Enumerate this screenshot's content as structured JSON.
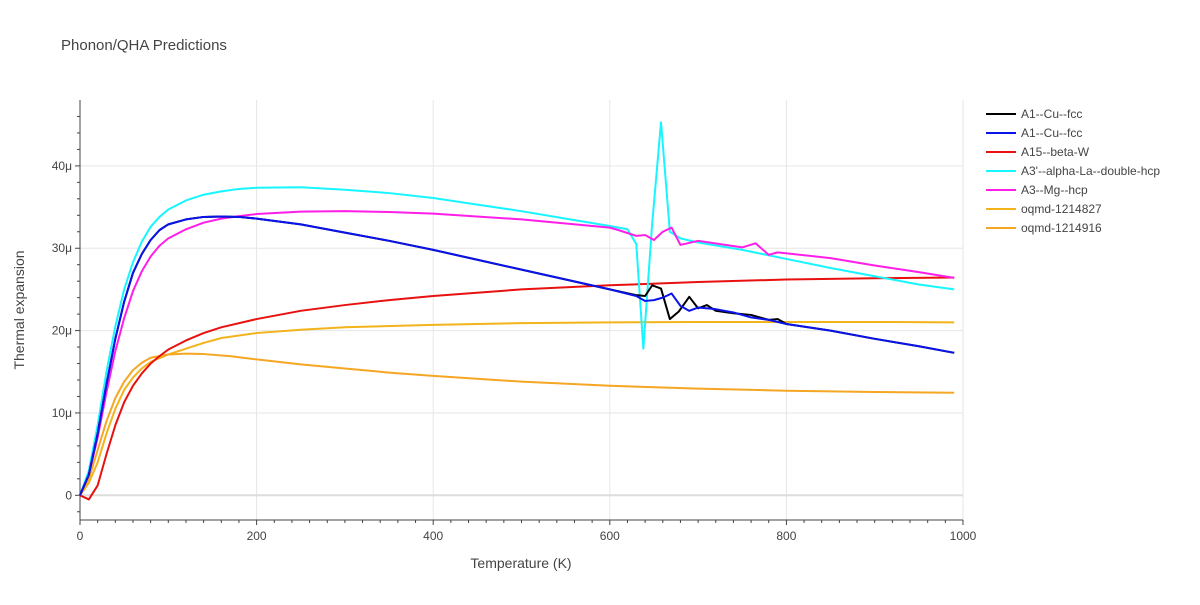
{
  "chart_data": {
    "type": "line",
    "title": "Phonon/QHA Predictions",
    "xlabel": "Temperature (K)",
    "ylabel": "Thermal expansion",
    "xlim": [
      0,
      1000
    ],
    "ylim": [
      -3e-06,
      4.8e-05
    ],
    "x_ticks": [
      {
        "value": 0,
        "label": "0"
      },
      {
        "value": 200,
        "label": "200"
      },
      {
        "value": 400,
        "label": "400"
      },
      {
        "value": 600,
        "label": "600"
      },
      {
        "value": 800,
        "label": "800"
      },
      {
        "value": 1000,
        "label": "1000"
      }
    ],
    "y_ticks": [
      {
        "value": 0,
        "label": "0"
      },
      {
        "value": 1e-05,
        "label": "10μ"
      },
      {
        "value": 2e-05,
        "label": "20μ"
      },
      {
        "value": 3e-05,
        "label": "30μ"
      },
      {
        "value": 4e-05,
        "label": "40μ"
      }
    ],
    "grid": true,
    "legend_position": "top-right",
    "series": [
      {
        "name": "oqmd-1214827",
        "color": "#f2b31b",
        "points": [
          [
            0,
            0
          ],
          [
            10,
            1.5e-06
          ],
          [
            20,
            4e-06
          ],
          [
            30,
            7.5e-06
          ],
          [
            40,
            1.05e-05
          ],
          [
            50,
            1.28e-05
          ],
          [
            60,
            1.43e-05
          ],
          [
            70,
            1.54e-05
          ],
          [
            80,
            1.62e-05
          ],
          [
            100,
            1.71e-05
          ],
          [
            120,
            1.78e-05
          ],
          [
            140,
            1.85e-05
          ],
          [
            160,
            1.91e-05
          ],
          [
            200,
            1.97e-05
          ],
          [
            250,
            2.01e-05
          ],
          [
            300,
            2.04e-05
          ],
          [
            400,
            2.07e-05
          ],
          [
            500,
            2.09e-05
          ],
          [
            600,
            2.1e-05
          ],
          [
            700,
            2.105e-05
          ],
          [
            800,
            2.105e-05
          ],
          [
            900,
            2.105e-05
          ],
          [
            990,
            2.1e-05
          ]
        ]
      },
      {
        "name": "oqmd-1214916",
        "color": "#f5a623",
        "points": [
          [
            0,
            0
          ],
          [
            10,
            2e-06
          ],
          [
            20,
            5.5e-06
          ],
          [
            30,
            9e-06
          ],
          [
            40,
            1.18e-05
          ],
          [
            50,
            1.38e-05
          ],
          [
            60,
            1.52e-05
          ],
          [
            70,
            1.61e-05
          ],
          [
            80,
            1.67e-05
          ],
          [
            100,
            1.71e-05
          ],
          [
            120,
            1.72e-05
          ],
          [
            140,
            1.715e-05
          ],
          [
            170,
            1.69e-05
          ],
          [
            200,
            1.65e-05
          ],
          [
            250,
            1.59e-05
          ],
          [
            300,
            1.54e-05
          ],
          [
            350,
            1.49e-05
          ],
          [
            400,
            1.45e-05
          ],
          [
            500,
            1.38e-05
          ],
          [
            600,
            1.33e-05
          ],
          [
            700,
            1.295e-05
          ],
          [
            800,
            1.27e-05
          ],
          [
            900,
            1.255e-05
          ],
          [
            990,
            1.245e-05
          ]
        ]
      },
      {
        "name": "A15--beta-W",
        "color": "#e8110f",
        "points": [
          [
            0,
            0
          ],
          [
            10,
            -5e-07
          ],
          [
            20,
            1.2e-06
          ],
          [
            30,
            5e-06
          ],
          [
            40,
            8.5e-06
          ],
          [
            50,
            1.13e-05
          ],
          [
            60,
            1.33e-05
          ],
          [
            70,
            1.48e-05
          ],
          [
            80,
            1.6e-05
          ],
          [
            90,
            1.69e-05
          ],
          [
            100,
            1.77e-05
          ],
          [
            120,
            1.88e-05
          ],
          [
            140,
            1.97e-05
          ],
          [
            160,
            2.04e-05
          ],
          [
            200,
            2.14e-05
          ],
          [
            250,
            2.24e-05
          ],
          [
            300,
            2.31e-05
          ],
          [
            350,
            2.37e-05
          ],
          [
            400,
            2.42e-05
          ],
          [
            500,
            2.5e-05
          ],
          [
            600,
            2.55e-05
          ],
          [
            700,
            2.59e-05
          ],
          [
            800,
            2.62e-05
          ],
          [
            900,
            2.635e-05
          ],
          [
            990,
            2.645e-05
          ]
        ]
      },
      {
        "name": "A3'--alpha-La--double-hcp",
        "color": "#17f5ff",
        "points": [
          [
            0,
            0
          ],
          [
            10,
            3e-06
          ],
          [
            20,
            8.5e-06
          ],
          [
            30,
            1.5e-05
          ],
          [
            40,
            2.05e-05
          ],
          [
            50,
            2.5e-05
          ],
          [
            60,
            2.83e-05
          ],
          [
            70,
            3.08e-05
          ],
          [
            80,
            3.26e-05
          ],
          [
            90,
            3.38e-05
          ],
          [
            100,
            3.47e-05
          ],
          [
            120,
            3.58e-05
          ],
          [
            140,
            3.65e-05
          ],
          [
            160,
            3.69e-05
          ],
          [
            180,
            3.72e-05
          ],
          [
            200,
            3.735e-05
          ],
          [
            250,
            3.74e-05
          ],
          [
            300,
            3.71e-05
          ],
          [
            350,
            3.67e-05
          ],
          [
            400,
            3.61e-05
          ],
          [
            450,
            3.53e-05
          ],
          [
            500,
            3.45e-05
          ],
          [
            550,
            3.36e-05
          ],
          [
            600,
            3.27e-05
          ],
          [
            620,
            3.23e-05
          ],
          [
            630,
            3.05e-05
          ],
          [
            638,
            1.78e-05
          ],
          [
            648,
            3.3e-05
          ],
          [
            658,
            4.53e-05
          ],
          [
            668,
            3.2e-05
          ],
          [
            680,
            3.12e-05
          ],
          [
            700,
            3.07e-05
          ],
          [
            750,
            2.98e-05
          ],
          [
            800,
            2.87e-05
          ],
          [
            850,
            2.76e-05
          ],
          [
            900,
            2.66e-05
          ],
          [
            950,
            2.56e-05
          ],
          [
            990,
            2.5e-05
          ]
        ]
      },
      {
        "name": "A3--Mg--hcp",
        "color": "#ff1ee8",
        "points": [
          [
            0,
            0
          ],
          [
            10,
            2.5e-06
          ],
          [
            20,
            7e-06
          ],
          [
            30,
            1.25e-05
          ],
          [
            40,
            1.75e-05
          ],
          [
            50,
            2.15e-05
          ],
          [
            60,
            2.48e-05
          ],
          [
            70,
            2.72e-05
          ],
          [
            80,
            2.9e-05
          ],
          [
            90,
            3.03e-05
          ],
          [
            100,
            3.12e-05
          ],
          [
            120,
            3.23e-05
          ],
          [
            140,
            3.31e-05
          ],
          [
            160,
            3.36e-05
          ],
          [
            180,
            3.39e-05
          ],
          [
            200,
            3.415e-05
          ],
          [
            250,
            3.445e-05
          ],
          [
            300,
            3.45e-05
          ],
          [
            350,
            3.44e-05
          ],
          [
            400,
            3.42e-05
          ],
          [
            500,
            3.35e-05
          ],
          [
            600,
            3.25e-05
          ],
          [
            610,
            3.22e-05
          ],
          [
            630,
            3.15e-05
          ],
          [
            640,
            3.16e-05
          ],
          [
            650,
            3.1e-05
          ],
          [
            660,
            3.2e-05
          ],
          [
            670,
            3.25e-05
          ],
          [
            680,
            3.04e-05
          ],
          [
            700,
            3.09e-05
          ],
          [
            750,
            3.01e-05
          ],
          [
            765,
            3.06e-05
          ],
          [
            780,
            2.92e-05
          ],
          [
            790,
            2.95e-05
          ],
          [
            850,
            2.88e-05
          ],
          [
            900,
            2.79e-05
          ],
          [
            950,
            2.71e-05
          ],
          [
            990,
            2.64e-05
          ]
        ]
      },
      {
        "name": "A1--Cu--fcc",
        "color": "#000000",
        "points": [
          [
            0,
            0
          ],
          [
            10,
            2.5e-06
          ],
          [
            20,
            7.5e-06
          ],
          [
            30,
            1.35e-05
          ],
          [
            40,
            1.9e-05
          ],
          [
            50,
            2.35e-05
          ],
          [
            60,
            2.7e-05
          ],
          [
            70,
            2.93e-05
          ],
          [
            80,
            3.1e-05
          ],
          [
            90,
            3.22e-05
          ],
          [
            100,
            3.29e-05
          ],
          [
            120,
            3.35e-05
          ],
          [
            140,
            3.38e-05
          ],
          [
            160,
            3.385e-05
          ],
          [
            180,
            3.38e-05
          ],
          [
            200,
            3.36e-05
          ],
          [
            250,
            3.29e-05
          ],
          [
            300,
            3.19e-05
          ],
          [
            350,
            3.09e-05
          ],
          [
            400,
            2.98e-05
          ],
          [
            450,
            2.86e-05
          ],
          [
            500,
            2.74e-05
          ],
          [
            550,
            2.62e-05
          ],
          [
            600,
            2.5e-05
          ],
          [
            630,
            2.43e-05
          ],
          [
            640,
            2.42e-05
          ],
          [
            648,
            2.55e-05
          ],
          [
            658,
            2.51e-05
          ],
          [
            668,
            2.14e-05
          ],
          [
            678,
            2.23e-05
          ],
          [
            690,
            2.41e-05
          ],
          [
            700,
            2.27e-05
          ],
          [
            710,
            2.31e-05
          ],
          [
            720,
            2.24e-05
          ],
          [
            740,
            2.21e-05
          ],
          [
            760,
            2.19e-05
          ],
          [
            780,
            2.13e-05
          ],
          [
            790,
            2.14e-05
          ],
          [
            800,
            2.08e-05
          ],
          [
            850,
            2e-05
          ],
          [
            900,
            1.9e-05
          ],
          [
            950,
            1.81e-05
          ],
          [
            990,
            1.73e-05
          ]
        ]
      },
      {
        "name": "A1--Cu--fcc",
        "color": "#0a13ea",
        "points": [
          [
            0,
            0
          ],
          [
            10,
            2.5e-06
          ],
          [
            20,
            7.5e-06
          ],
          [
            30,
            1.35e-05
          ],
          [
            40,
            1.9e-05
          ],
          [
            50,
            2.35e-05
          ],
          [
            60,
            2.7e-05
          ],
          [
            70,
            2.93e-05
          ],
          [
            80,
            3.1e-05
          ],
          [
            90,
            3.22e-05
          ],
          [
            100,
            3.29e-05
          ],
          [
            120,
            3.35e-05
          ],
          [
            140,
            3.38e-05
          ],
          [
            160,
            3.385e-05
          ],
          [
            180,
            3.38e-05
          ],
          [
            200,
            3.36e-05
          ],
          [
            250,
            3.29e-05
          ],
          [
            300,
            3.19e-05
          ],
          [
            350,
            3.09e-05
          ],
          [
            400,
            2.98e-05
          ],
          [
            450,
            2.86e-05
          ],
          [
            500,
            2.74e-05
          ],
          [
            550,
            2.62e-05
          ],
          [
            600,
            2.5e-05
          ],
          [
            630,
            2.42e-05
          ],
          [
            640,
            2.36e-05
          ],
          [
            650,
            2.37e-05
          ],
          [
            660,
            2.4e-05
          ],
          [
            670,
            2.45e-05
          ],
          [
            680,
            2.3e-05
          ],
          [
            690,
            2.24e-05
          ],
          [
            700,
            2.28e-05
          ],
          [
            720,
            2.26e-05
          ],
          [
            740,
            2.22e-05
          ],
          [
            760,
            2.16e-05
          ],
          [
            780,
            2.13e-05
          ],
          [
            800,
            2.08e-05
          ],
          [
            850,
            2e-05
          ],
          [
            900,
            1.9e-05
          ],
          [
            950,
            1.81e-05
          ],
          [
            990,
            1.73e-05
          ]
        ]
      }
    ],
    "legend_order": [
      5,
      6,
      2,
      3,
      4,
      0,
      1
    ]
  }
}
